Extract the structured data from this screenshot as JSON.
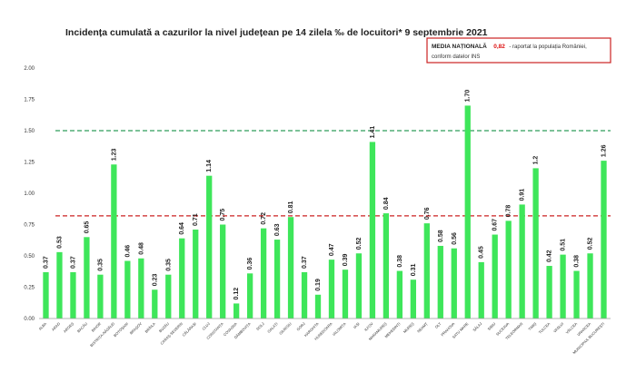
{
  "chart_data": {
    "type": "bar",
    "title": "Incidența cumulată a cazurilor la nivel județean pe 14 zilela ‰ de locuitori* 9 septembrie 2021",
    "ylim": [
      0,
      2
    ],
    "yticks": [
      "0.00",
      "0.25",
      "0.50",
      "0.75",
      "1.00",
      "1.25",
      "1.50",
      "1.75",
      "2.00"
    ],
    "grid": false,
    "bar_color": "#3ee65a",
    "categories": [
      "ALBA",
      "ARAD",
      "ARGEȘ",
      "BACĂU",
      "BIHOR",
      "BISTRIȚA-NĂSĂUD",
      "BOTOȘANI",
      "BRAȘOV",
      "BRĂILA",
      "BUZĂU",
      "CARAȘ-SEVERIN",
      "CĂLĂRAȘI",
      "CLUJ",
      "CONSTANȚA",
      "COVASNA",
      "DÂMBOVIȚA",
      "DOLJ",
      "GALAȚI",
      "GIURGIU",
      "GORJ",
      "HARGHITA",
      "HUNEDOARA",
      "IALOMIȚA",
      "IAȘI",
      "ILFOV",
      "MARAMUREȘ",
      "MEHEDINȚI",
      "MUREȘ",
      "NEAMȚ",
      "OLT",
      "PRAHOVA",
      "SATU MARE",
      "SĂLAJ",
      "SIBIU",
      "SUCEAVA",
      "TELEORMAN",
      "TIMIȘ",
      "TULCEA",
      "VASLUI",
      "VÂLCEA",
      "VRANCEA",
      "MUNICIPIUL BUCUREȘTI"
    ],
    "values": [
      0.37,
      0.53,
      0.37,
      0.65,
      0.35,
      1.23,
      0.46,
      0.48,
      0.23,
      0.35,
      0.64,
      0.71,
      1.14,
      0.75,
      0.12,
      0.36,
      0.72,
      0.63,
      0.81,
      0.37,
      0.19,
      0.47,
      0.39,
      0.52,
      1.41,
      0.84,
      0.38,
      0.31,
      0.76,
      0.58,
      0.56,
      1.7,
      0.45,
      0.67,
      0.78,
      0.91,
      1.2,
      0.42,
      0.51,
      0.38,
      0.52,
      1.26
    ],
    "value_labels": [
      "0.37",
      "0.53",
      "0.37",
      "0.65",
      "0.35",
      "1.23",
      "0.46",
      "0.48",
      "0.23",
      "0.35",
      "0.64",
      "0.71",
      "1.14",
      "0.75",
      "0.12",
      "0.36",
      "0.72",
      "0.63",
      "0.81",
      "0.37",
      "0.19",
      "0.47",
      "0.39",
      "0.52",
      "1.41",
      "0.84",
      "0.38",
      "0.31",
      "0.76",
      "0.58",
      "0.56",
      "1.70",
      "0.45",
      "0.67",
      "0.78",
      "0.91",
      "1.2",
      "0.42",
      "0.51",
      "0.38",
      "0.52",
      "1.26"
    ],
    "reference_lines": [
      {
        "value": 1.5,
        "color": "#2e9e5b"
      },
      {
        "value": 0.82,
        "color": "#cc2222"
      }
    ],
    "annotation": {
      "bold": "MEDIA NAȚIONALĂ",
      "value": "0,82",
      "rest": " - raportat la populația României,",
      "line2": "conform datelor INS",
      "border_color": "#cc2222"
    }
  }
}
